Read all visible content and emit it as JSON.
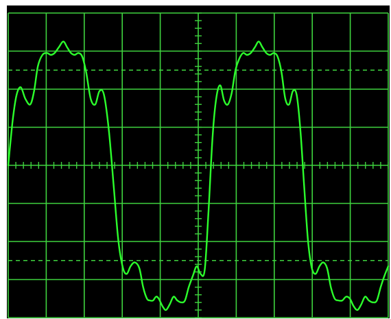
{
  "colors": {
    "screen_background": "#000000",
    "bezel": "#ffffff",
    "graticule": "#3fd43f",
    "trace": "#2cff2c"
  },
  "chart_data": {
    "type": "line",
    "title": "",
    "xlabel": "",
    "ylabel": "",
    "grid": true,
    "graticule": {
      "x_divisions": 10,
      "y_divisions": 8,
      "minor_ticks_per_division": 5,
      "dashed_levels": [
        2.5,
        -2.5
      ]
    },
    "xlim": [
      0,
      10
    ],
    "ylim": [
      -4,
      4
    ],
    "series": [
      {
        "values_x": [
          0.0,
          0.12,
          0.22,
          0.33,
          0.45,
          0.58,
          0.68,
          0.78,
          0.9,
          1.02,
          1.12,
          1.22,
          1.33,
          1.45,
          1.55,
          1.65,
          1.75,
          1.85,
          1.95,
          2.05,
          2.17,
          2.29,
          2.4,
          2.52,
          2.65,
          2.78,
          2.9,
          3.02,
          3.12,
          3.22,
          3.33,
          3.45,
          3.55,
          3.65,
          3.73,
          3.81,
          3.89,
          3.96,
          4.06,
          4.15,
          4.25,
          4.35,
          4.45,
          4.55,
          4.65,
          4.75,
          4.86,
          4.96,
          5.06,
          5.17,
          5.27,
          5.38,
          5.48,
          5.58,
          5.68,
          5.78,
          5.88,
          5.98,
          6.08,
          6.18,
          6.28,
          6.38,
          6.49,
          6.59,
          6.69,
          6.79,
          6.89,
          6.99,
          7.09,
          7.19,
          7.29,
          7.39,
          7.49,
          7.59,
          7.69,
          7.79,
          7.89,
          7.99,
          8.09,
          8.19,
          8.29,
          8.39,
          8.49,
          8.59,
          8.69,
          8.79,
          8.89,
          8.99,
          9.09,
          9.19,
          9.29,
          9.39,
          9.49,
          9.6,
          9.7,
          9.8,
          9.9,
          10.0
        ],
        "values_y": [
          0.0,
          1.2,
          1.85,
          2.05,
          1.75,
          1.6,
          1.95,
          2.6,
          2.9,
          2.95,
          2.9,
          2.95,
          3.1,
          3.25,
          3.1,
          2.95,
          2.9,
          2.95,
          2.85,
          2.45,
          1.75,
          1.6,
          1.95,
          1.85,
          0.9,
          -0.6,
          -2.0,
          -2.7,
          -2.85,
          -2.65,
          -2.55,
          -2.7,
          -3.2,
          -3.5,
          -3.55,
          -3.55,
          -3.45,
          -3.5,
          -3.7,
          -3.8,
          -3.65,
          -3.45,
          -3.55,
          -3.6,
          -3.55,
          -3.2,
          -2.9,
          -2.65,
          -2.85,
          -2.75,
          -1.2,
          0.8,
          1.8,
          2.1,
          1.7,
          1.6,
          1.9,
          2.5,
          2.8,
          2.95,
          2.9,
          2.95,
          3.1,
          3.25,
          3.1,
          2.95,
          2.9,
          2.95,
          2.85,
          2.45,
          1.75,
          1.6,
          1.95,
          1.85,
          0.9,
          -0.6,
          -2.0,
          -2.7,
          -2.85,
          -2.65,
          -2.55,
          -2.7,
          -3.2,
          -3.5,
          -3.55,
          -3.55,
          -3.45,
          -3.5,
          -3.7,
          -3.8,
          -3.65,
          -3.45,
          -3.55,
          -3.6,
          -3.55,
          -3.2,
          -2.9,
          -2.65
        ]
      }
    ]
  }
}
